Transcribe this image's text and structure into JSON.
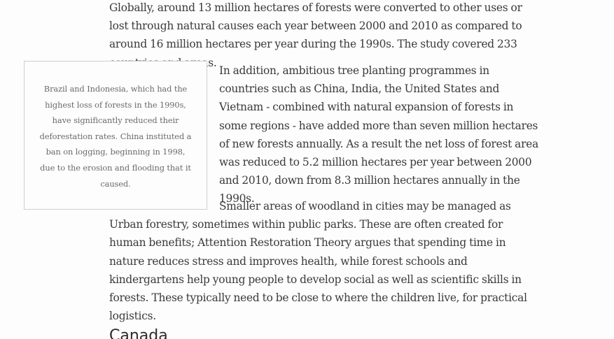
{
  "article": {
    "paragraph_1": "Globally, around 13 million hectares of forests were converted to other uses or lost through natural causes each year between 2000 and 2010 as compared to around 16 million hectares per year during the 1990s. The study covered 233 countries and areas.",
    "pull_quote": "Brazil and Indonesia, which had the highest loss of forests in the 1990s, have significantly reduced their deforestation rates. China instituted a ban on logging, beginning in 1998, due to the erosion and flooding that it caused.",
    "paragraph_2": "In addition, ambitious tree planting programmes in countries such as China, India, the United States and Vietnam - combined with natural expansion of forests in some regions - have added more than seven million hectares of new forests annually. As a result the net loss of forest area was reduced to 5.2 million hectares per year between 2000 and 2010, down from 8.3 million hectares annually in the 1990s.",
    "paragraph_3": "Smaller areas of woodland in cities may be managed as Urban forestry, sometimes within public parks. These are often created for human benefits; Attention Restoration Theory argues that spending time in nature reduces stress and improves health, while forest schools and kindergartens help young people to develop social as well as scientific skills in forests. These typically need to be close to where the children live, for practical logistics.",
    "section_heading": "Canada"
  }
}
